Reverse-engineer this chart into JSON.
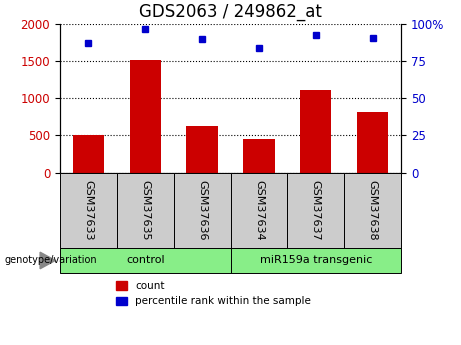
{
  "title": "GDS2063 / 249862_at",
  "samples": [
    "GSM37633",
    "GSM37635",
    "GSM37636",
    "GSM37634",
    "GSM37637",
    "GSM37638"
  ],
  "counts": [
    500,
    1520,
    630,
    450,
    1110,
    810
  ],
  "percentile_ranks": [
    87,
    97,
    90,
    84,
    93,
    91
  ],
  "ylim_left": [
    0,
    2000
  ],
  "ylim_right": [
    0,
    100
  ],
  "yticks_left": [
    0,
    500,
    1000,
    1500,
    2000
  ],
  "yticks_right": [
    0,
    25,
    50,
    75,
    100
  ],
  "bar_color": "#cc0000",
  "dot_color": "#0000cc",
  "group_box_color": "#cccccc",
  "group1_label": "control",
  "group2_label": "miR159a transgenic",
  "group_fill_color": "#88ee88",
  "legend_count_label": "count",
  "legend_pct_label": "percentile rank within the sample",
  "title_fontsize": 12,
  "tick_fontsize": 8.5,
  "label_fontsize": 8.5
}
